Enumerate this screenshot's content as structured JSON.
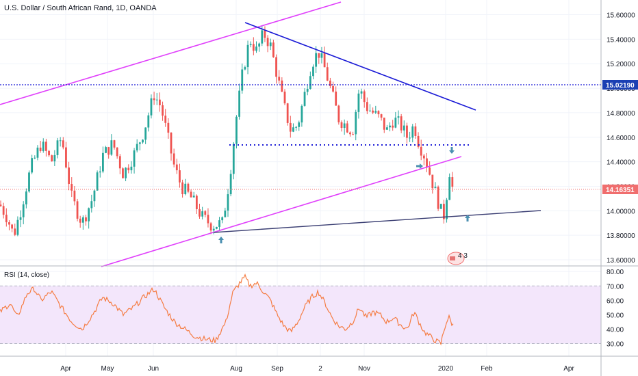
{
  "header": {
    "title": "U.S. Dollar / South African Rand, 1D, OANDA"
  },
  "price_tags": {
    "resistance": "15.02190",
    "last": "14.16351"
  },
  "indicator": {
    "label": "RSI (14, close)"
  },
  "badge": {
    "text": "4 3"
  },
  "colors": {
    "up": "#26a69a",
    "down": "#ef5350",
    "magenta": "#e040fb",
    "blue": "#1a1ad6",
    "navy": "#3b3f73",
    "rsi_line": "#f57c42",
    "rsi_band": "#f3e6fb",
    "last_tag": "#f06e6e",
    "res_tag": "#1a3fb3",
    "arrow": "#4a8fb0"
  },
  "chart_data": [
    {
      "type": "candlestick",
      "title": "U.S. Dollar / South African Rand, 1D, OANDA",
      "y_axis_ticks": [
        "13.60000",
        "13.80000",
        "14.00000",
        "14.20000",
        "14.40000",
        "14.60000",
        "14.80000",
        "15.00000",
        "15.20000",
        "15.40000",
        "15.60000"
      ],
      "ylim": [
        13.55,
        15.72
      ],
      "x_axis_ticks": [
        "Apr",
        "May",
        "Jun",
        "Aug",
        "Sep",
        "2",
        "Nov",
        "2020",
        "Feb",
        "Apr"
      ],
      "key_prices": {
        "horizontal_resistance": 15.0219,
        "last_close": 14.16351,
        "dotted_support": 14.52
      },
      "path_anchors": [
        [
          0,
          14.05
        ],
        [
          10,
          13.95
        ],
        [
          20,
          13.8
        ],
        [
          30,
          14.0
        ],
        [
          45,
          14.35
        ],
        [
          60,
          14.55
        ],
        [
          75,
          14.4
        ],
        [
          90,
          14.6
        ],
        [
          105,
          14.1
        ],
        [
          120,
          13.9
        ],
        [
          135,
          14.1
        ],
        [
          150,
          14.45
        ],
        [
          165,
          14.55
        ],
        [
          180,
          14.3
        ],
        [
          195,
          14.45
        ],
        [
          210,
          14.65
        ],
        [
          225,
          14.95
        ],
        [
          235,
          14.85
        ],
        [
          245,
          14.6
        ],
        [
          255,
          14.35
        ],
        [
          265,
          14.2
        ],
        [
          280,
          14.1
        ],
        [
          295,
          13.95
        ],
        [
          310,
          13.88
        ],
        [
          325,
          13.9
        ],
        [
          335,
          14.25
        ],
        [
          345,
          14.75
        ],
        [
          355,
          15.15
        ],
        [
          365,
          15.4
        ],
        [
          375,
          15.3
        ],
        [
          385,
          15.45
        ],
        [
          395,
          15.35
        ],
        [
          405,
          15.1
        ],
        [
          415,
          14.85
        ],
        [
          425,
          14.65
        ],
        [
          435,
          14.7
        ],
        [
          445,
          14.95
        ],
        [
          455,
          15.2
        ],
        [
          465,
          15.3
        ],
        [
          475,
          15.15
        ],
        [
          485,
          14.95
        ],
        [
          495,
          14.75
        ],
        [
          505,
          14.7
        ],
        [
          515,
          14.65
        ],
        [
          525,
          15.0
        ],
        [
          535,
          14.85
        ],
        [
          545,
          14.8
        ],
        [
          555,
          14.75
        ],
        [
          565,
          14.65
        ],
        [
          575,
          14.75
        ],
        [
          585,
          14.7
        ],
        [
          595,
          14.6
        ],
        [
          605,
          14.7
        ],
        [
          612,
          14.55
        ],
        [
          620,
          14.45
        ],
        [
          628,
          14.3
        ],
        [
          636,
          14.15
        ],
        [
          644,
          14.0
        ],
        [
          648,
          13.95
        ],
        [
          652,
          14.1
        ],
        [
          656,
          14.35
        ],
        [
          660,
          14.2
        ],
        [
          663,
          14.16
        ]
      ],
      "rsi": {
        "ylim": [
          25,
          82
        ],
        "ticks": [
          "30.00",
          "40.00",
          "50.00",
          "60.00",
          "70.00",
          "80.00"
        ],
        "band": [
          30,
          70
        ],
        "anchors": [
          [
            0,
            52
          ],
          [
            15,
            58
          ],
          [
            25,
            48
          ],
          [
            40,
            65
          ],
          [
            50,
            68
          ],
          [
            60,
            60
          ],
          [
            75,
            66
          ],
          [
            90,
            55
          ],
          [
            105,
            45
          ],
          [
            120,
            40
          ],
          [
            135,
            50
          ],
          [
            150,
            62
          ],
          [
            165,
            58
          ],
          [
            180,
            50
          ],
          [
            195,
            55
          ],
          [
            210,
            62
          ],
          [
            225,
            68
          ],
          [
            240,
            55
          ],
          [
            255,
            45
          ],
          [
            270,
            40
          ],
          [
            285,
            35
          ],
          [
            300,
            33
          ],
          [
            315,
            32
          ],
          [
            330,
            45
          ],
          [
            340,
            65
          ],
          [
            350,
            72
          ],
          [
            358,
            76
          ],
          [
            365,
            70
          ],
          [
            375,
            72
          ],
          [
            385,
            66
          ],
          [
            395,
            60
          ],
          [
            405,
            50
          ],
          [
            415,
            42
          ],
          [
            425,
            38
          ],
          [
            435,
            45
          ],
          [
            445,
            55
          ],
          [
            455,
            62
          ],
          [
            465,
            66
          ],
          [
            475,
            58
          ],
          [
            485,
            48
          ],
          [
            495,
            42
          ],
          [
            505,
            40
          ],
          [
            515,
            45
          ],
          [
            525,
            55
          ],
          [
            535,
            48
          ],
          [
            545,
            52
          ],
          [
            555,
            50
          ],
          [
            565,
            45
          ],
          [
            575,
            48
          ],
          [
            585,
            43
          ],
          [
            595,
            40
          ],
          [
            605,
            52
          ],
          [
            612,
            45
          ],
          [
            620,
            38
          ],
          [
            628,
            35
          ],
          [
            636,
            32
          ],
          [
            644,
            30
          ],
          [
            648,
            38
          ],
          [
            652,
            45
          ],
          [
            656,
            48
          ],
          [
            660,
            44
          ],
          [
            663,
            42
          ]
        ]
      }
    }
  ]
}
